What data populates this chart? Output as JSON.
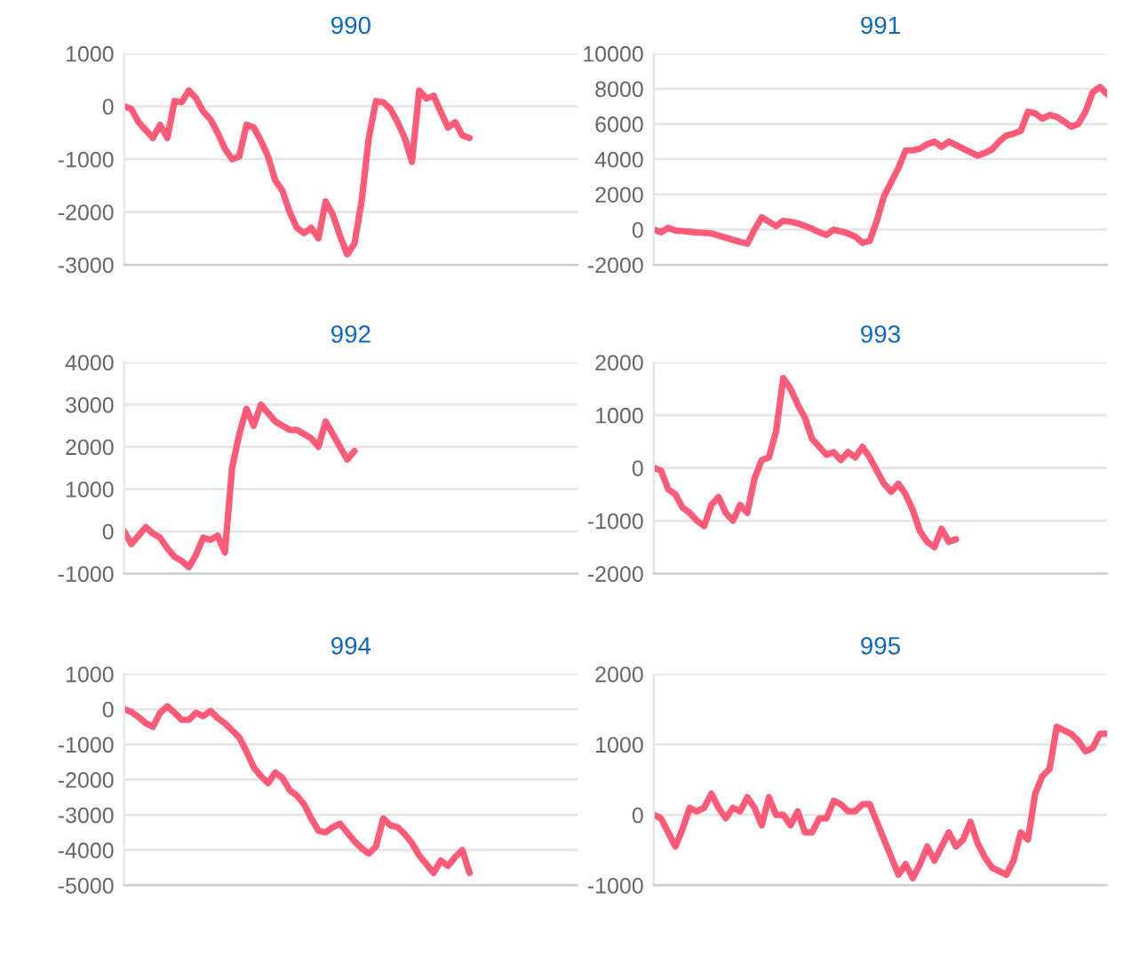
{
  "chart_data": [
    {
      "type": "line",
      "title": "990",
      "categories": [
        null,
        null,
        null,
        null,
        null,
        null,
        null,
        null,
        null,
        null,
        null,
        null,
        null,
        null,
        null,
        null,
        null,
        null,
        null,
        null,
        null,
        null,
        null,
        null,
        null,
        null,
        null,
        null,
        null,
        null,
        null,
        null,
        null,
        null,
        null,
        null,
        null,
        null,
        null,
        null,
        null,
        null,
        null,
        null,
        null,
        null,
        null,
        null,
        null,
        null,
        null,
        null,
        null,
        null,
        null,
        null,
        null,
        null,
        null,
        null,
        null,
        null,
        null,
        null
      ],
      "ylim": [
        -3000,
        1000
      ],
      "yticks": [
        -3000,
        -2000,
        -1000,
        0,
        1000
      ],
      "grid": "y",
      "marker": "none",
      "series": [
        {
          "color": "#ff5a78",
          "values": [
            0,
            -50,
            -300,
            -450,
            -600,
            -350,
            -600,
            100,
            80,
            300,
            150,
            -100,
            -250,
            -500,
            -800,
            -1000,
            -950,
            -350,
            -400,
            -650,
            -950,
            -1400,
            -1600,
            -2000,
            -2300,
            -2400,
            -2300,
            -2500,
            -1800,
            -2050,
            -2450,
            -2800,
            -2600,
            -1800,
            -600,
            100,
            80,
            -50,
            -300,
            -600,
            -1050,
            300,
            150,
            200,
            -100,
            -400,
            -300,
            -550,
            -600,
            null,
            null,
            null,
            null,
            null,
            null,
            null,
            null,
            null,
            null,
            null,
            null,
            null,
            null,
            null
          ]
        }
      ]
    },
    {
      "type": "line",
      "title": "991",
      "categories": [
        null,
        null,
        null,
        null,
        null,
        null,
        null,
        null,
        null,
        null,
        null,
        null,
        null,
        null,
        null,
        null,
        null,
        null,
        null,
        null,
        null,
        null,
        null,
        null,
        null,
        null,
        null,
        null,
        null,
        null,
        null,
        null,
        null,
        null,
        null,
        null,
        null,
        null,
        null,
        null,
        null,
        null,
        null,
        null,
        null,
        null,
        null,
        null,
        null,
        null,
        null,
        null,
        null,
        null,
        null,
        null,
        null,
        null,
        null,
        null,
        null,
        null,
        null,
        null
      ],
      "ylim": [
        -2000,
        10000
      ],
      "yticks": [
        -2000,
        0,
        2000,
        4000,
        6000,
        8000,
        10000
      ],
      "grid": "y",
      "marker": "none",
      "series": [
        {
          "color": "#ff5a78",
          "values": [
            0,
            -150,
            100,
            -50,
            -80,
            -120,
            -160,
            -180,
            -220,
            -340,
            -460,
            -580,
            -700,
            -800,
            0,
            700,
            450,
            200,
            500,
            450,
            350,
            200,
            50,
            -150,
            -300,
            0,
            -100,
            -220,
            -400,
            -750,
            -650,
            500,
            1900,
            2700,
            3500,
            4500,
            4500,
            4600,
            4850,
            5000,
            4700,
            5000,
            4800,
            4600,
            4400,
            4200,
            4350,
            4550,
            5000,
            5350,
            5450,
            5600,
            6700,
            6600,
            6300,
            6500,
            6400,
            6150,
            5850,
            6000,
            6700,
            7800,
            8100,
            7700
          ]
        }
      ]
    },
    {
      "type": "line",
      "title": "992",
      "categories": [
        null,
        null,
        null,
        null,
        null,
        null,
        null,
        null,
        null,
        null,
        null,
        null,
        null,
        null,
        null,
        null,
        null,
        null,
        null,
        null,
        null,
        null,
        null,
        null,
        null,
        null,
        null,
        null,
        null,
        null,
        null,
        null,
        null,
        null,
        null,
        null,
        null,
        null,
        null,
        null,
        null,
        null,
        null,
        null,
        null,
        null,
        null,
        null,
        null,
        null,
        null,
        null,
        null,
        null,
        null,
        null,
        null,
        null,
        null,
        null,
        null,
        null,
        null,
        null
      ],
      "ylim": [
        -1000,
        4000
      ],
      "yticks": [
        -1000,
        0,
        1000,
        2000,
        3000,
        4000
      ],
      "grid": "y",
      "marker": "none",
      "series": [
        {
          "color": "#ff5a78",
          "values": [
            0,
            -300,
            -100,
            100,
            -50,
            -150,
            -400,
            -600,
            -700,
            -850,
            -550,
            -150,
            -200,
            -100,
            -500,
            1500,
            2300,
            2900,
            2500,
            3000,
            2800,
            2600,
            2500,
            2400,
            2400,
            2300,
            2200,
            2000,
            2600,
            2300,
            2000,
            1700,
            1900,
            null,
            null,
            null,
            null,
            null,
            null,
            null,
            null,
            null,
            null,
            null,
            null,
            null,
            null,
            null,
            null,
            null,
            null,
            null,
            null,
            null,
            null,
            null,
            null,
            null,
            null,
            null,
            null,
            null,
            null,
            null
          ]
        }
      ]
    },
    {
      "type": "line",
      "title": "993",
      "categories": [
        null,
        null,
        null,
        null,
        null,
        null,
        null,
        null,
        null,
        null,
        null,
        null,
        null,
        null,
        null,
        null,
        null,
        null,
        null,
        null,
        null,
        null,
        null,
        null,
        null,
        null,
        null,
        null,
        null,
        null,
        null,
        null,
        null,
        null,
        null,
        null,
        null,
        null,
        null,
        null,
        null,
        null,
        null,
        null,
        null,
        null,
        null,
        null,
        null,
        null,
        null,
        null,
        null,
        null,
        null,
        null,
        null,
        null,
        null,
        null,
        null,
        null,
        null,
        null
      ],
      "ylim": [
        -2000,
        2000
      ],
      "yticks": [
        -2000,
        -1000,
        0,
        1000,
        2000
      ],
      "grid": "y",
      "marker": "none",
      "series": [
        {
          "color": "#ff5a78",
          "values": [
            0,
            -50,
            -400,
            -500,
            -750,
            -850,
            -1000,
            -1100,
            -700,
            -550,
            -850,
            -1000,
            -700,
            -850,
            -200,
            150,
            200,
            700,
            1700,
            1500,
            1200,
            950,
            550,
            400,
            250,
            300,
            150,
            300,
            200,
            400,
            200,
            -50,
            -300,
            -450,
            -300,
            -500,
            -800,
            -1200,
            -1400,
            -1500,
            -1150,
            -1400,
            -1350,
            null,
            null,
            null,
            null,
            null,
            null,
            null,
            null,
            null,
            null,
            null,
            null,
            null,
            null,
            null,
            null,
            null,
            null,
            null,
            null,
            null
          ]
        }
      ]
    },
    {
      "type": "line",
      "title": "994",
      "categories": [
        null,
        null,
        null,
        null,
        null,
        null,
        null,
        null,
        null,
        null,
        null,
        null,
        null,
        null,
        null,
        null,
        null,
        null,
        null,
        null,
        null,
        null,
        null,
        null,
        null,
        null,
        null,
        null,
        null,
        null,
        null,
        null,
        null,
        null,
        null,
        null,
        null,
        null,
        null,
        null,
        null,
        null,
        null,
        null,
        null,
        null,
        null,
        null,
        null,
        null,
        null,
        null,
        null,
        null,
        null,
        null,
        null,
        null,
        null,
        null,
        null,
        null,
        null,
        null
      ],
      "ylim": [
        -5000,
        1000
      ],
      "yticks": [
        -5000,
        -4000,
        -3000,
        -2000,
        -1000,
        0,
        1000
      ],
      "grid": "y",
      "marker": "none",
      "series": [
        {
          "color": "#ff5a78",
          "values": [
            0,
            -80,
            -220,
            -400,
            -500,
            -100,
            80,
            -100,
            -300,
            -300,
            -100,
            -200,
            -50,
            -250,
            -400,
            -600,
            -800,
            -1200,
            -1650,
            -1900,
            -2100,
            -1800,
            -1950,
            -2300,
            -2450,
            -2700,
            -3100,
            -3450,
            -3500,
            -3350,
            -3250,
            -3500,
            -3750,
            -3950,
            -4100,
            -3900,
            -3100,
            -3300,
            -3350,
            -3550,
            -3800,
            -4150,
            -4400,
            -4650,
            -4300,
            -4450,
            -4200,
            -4000,
            -4650,
            null,
            null,
            null,
            null,
            null,
            null,
            null,
            null,
            null,
            null,
            null,
            null,
            null,
            null,
            null
          ]
        }
      ]
    },
    {
      "type": "line",
      "title": "995",
      "categories": [
        null,
        null,
        null,
        null,
        null,
        null,
        null,
        null,
        null,
        null,
        null,
        null,
        null,
        null,
        null,
        null,
        null,
        null,
        null,
        null,
        null,
        null,
        null,
        null,
        null,
        null,
        null,
        null,
        null,
        null,
        null,
        null,
        null,
        null,
        null,
        null,
        null,
        null,
        null,
        null,
        null,
        null,
        null,
        null,
        null,
        null,
        null,
        null,
        null,
        null,
        null,
        null,
        null,
        null,
        null,
        null,
        null,
        null,
        null,
        null,
        null,
        null,
        null,
        null
      ],
      "ylim": [
        -1000,
        2000
      ],
      "yticks": [
        -1000,
        0,
        1000,
        2000
      ],
      "grid": "y",
      "marker": "none",
      "series": [
        {
          "color": "#ff5a78",
          "values": [
            0,
            -50,
            -250,
            -450,
            -200,
            100,
            50,
            100,
            300,
            100,
            -50,
            100,
            50,
            250,
            100,
            -150,
            250,
            0,
            0,
            -150,
            50,
            -250,
            -250,
            -50,
            -50,
            200,
            150,
            50,
            50,
            150,
            150,
            -100,
            -350,
            -600,
            -850,
            -700,
            -900,
            -700,
            -450,
            -650,
            -450,
            -250,
            -450,
            -350,
            -100,
            -400,
            -600,
            -750,
            -800,
            -850,
            -650,
            -250,
            -350,
            300,
            550,
            650,
            1250,
            1200,
            1150,
            1050,
            900,
            950,
            1150,
            1150
          ]
        }
      ]
    }
  ]
}
